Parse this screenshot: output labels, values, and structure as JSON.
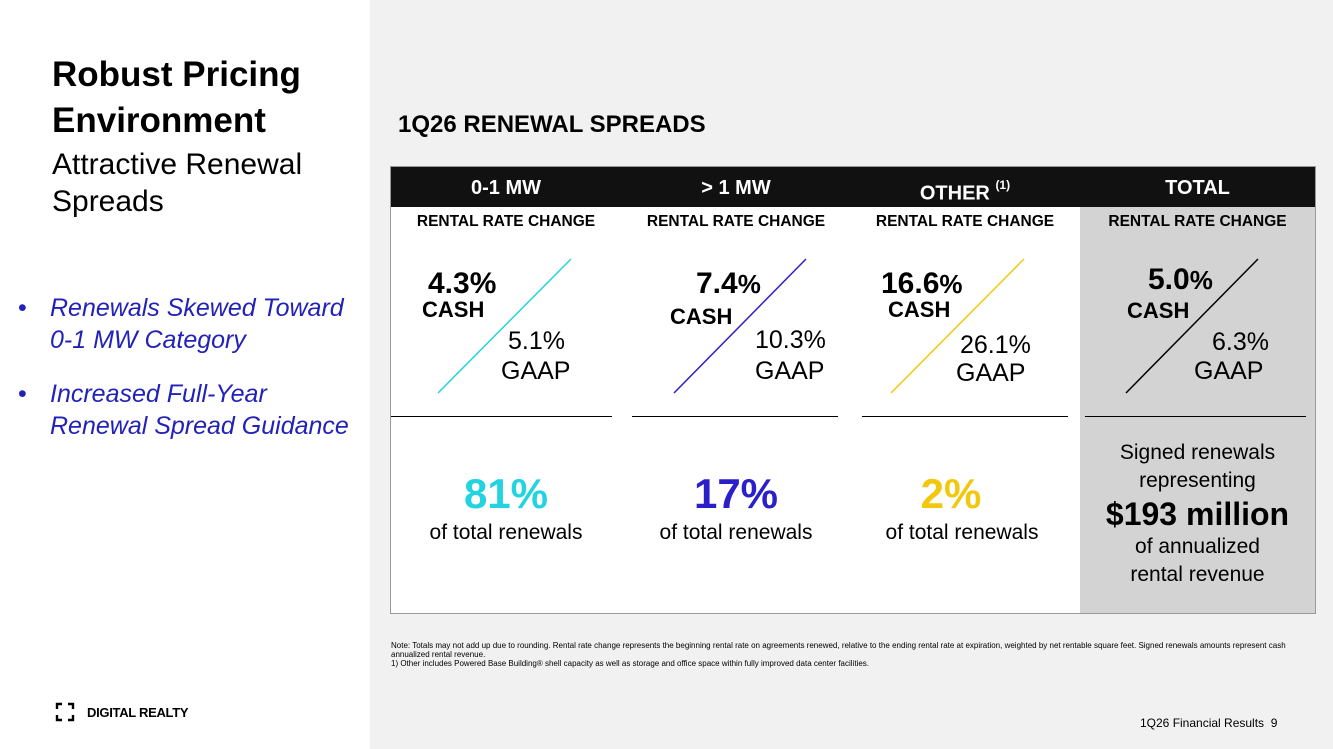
{
  "slide": {
    "title": "Robust Pricing Environment",
    "subtitle": "Attractive Renewal Spreads",
    "bullets": [
      "Renewals Skewed Toward 0-1 MW Category",
      "Increased Full-Year Renewal Spread Guidance"
    ],
    "logo_text": "DIGITAL REALTY",
    "section_title": "1Q26 RENEWAL SPREADS",
    "footer_text": "1Q26 Financial Results",
    "page_number": "9",
    "note_lines": [
      "Note:  Totals may not add up due to rounding. Rental rate change represents the beginning rental rate on agreements renewed, relative to the ending rental rate at expiration, weighted by net rentable square feet. Signed renewals amounts represent cash annualized rental revenue.",
      "1)      Other includes Powered Base Building® shell capacity as well as storage and office space within fully improved data center facilities."
    ]
  },
  "table": {
    "sub_header": "RENTAL RATE CHANGE",
    "cash_label": "CASH",
    "gaap_label": "GAAP",
    "share_suffix": "of total renewals",
    "columns": [
      {
        "name": "0-1 MW",
        "sup": "",
        "cash_num": "4.3",
        "gaap": "5.1%",
        "share": "81%",
        "color": "#22d3e0"
      },
      {
        "name": "> 1 MW",
        "sup": "",
        "cash_num": "7.4",
        "gaap": "10.3%",
        "share": "17%",
        "color": "#2a1fc8"
      },
      {
        "name": "OTHER",
        "sup": "(1)",
        "cash_num": "16.6",
        "gaap": "26.1%",
        "share": "2%",
        "color": "#f2c80f"
      },
      {
        "name": "TOTAL",
        "sup": "",
        "cash_num": "5.0",
        "gaap": "6.3%",
        "color": "#000000"
      }
    ],
    "pct_sign": "%",
    "total_lines": {
      "line1": "Signed renewals",
      "line2": "representing",
      "amount": "$193 million",
      "line3": "of annualized",
      "line4": "rental revenue"
    }
  }
}
